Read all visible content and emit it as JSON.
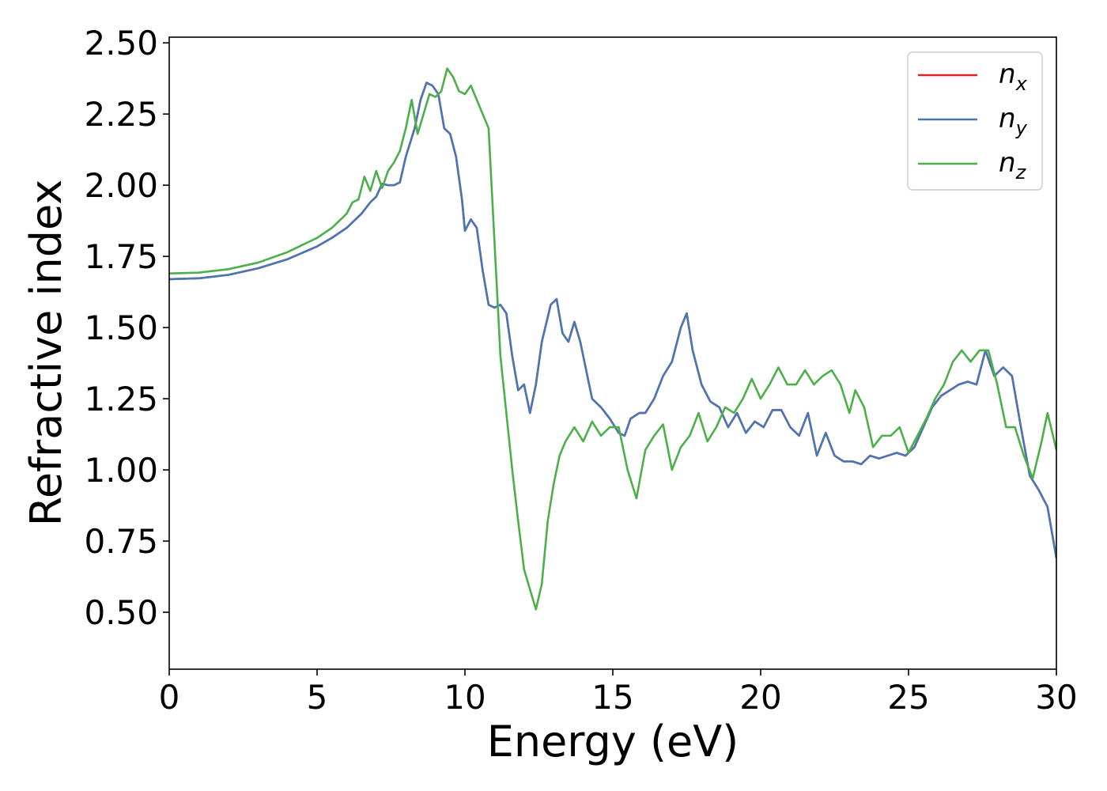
{
  "chart_data": {
    "type": "line",
    "title": "",
    "xlabel": "Energy (eV)",
    "ylabel": "Refractive index",
    "xlim": [
      0,
      30
    ],
    "ylim": [
      0.3,
      2.52
    ],
    "xticks": [
      0,
      5,
      10,
      15,
      20,
      25,
      30
    ],
    "xtick_labels": [
      "0",
      "5",
      "10",
      "15",
      "20",
      "25",
      "30"
    ],
    "yticks": [
      0.5,
      0.75,
      1.0,
      1.25,
      1.5,
      1.75,
      2.0,
      2.25,
      2.5
    ],
    "ytick_labels": [
      "0.50",
      "0.75",
      "1.00",
      "1.25",
      "1.50",
      "1.75",
      "2.00",
      "2.25",
      "2.50"
    ],
    "grid": false,
    "legend_position": "top-right",
    "series": [
      {
        "name": "n_x",
        "label_base": "n",
        "label_sub": "x",
        "color": "#d62728",
        "points": [
          [
            0,
            1.67
          ],
          [
            1,
            1.673
          ],
          [
            2,
            1.685
          ],
          [
            3,
            1.708
          ],
          [
            4,
            1.74
          ],
          [
            5,
            1.785
          ],
          [
            5.5,
            1.815
          ],
          [
            6,
            1.85
          ],
          [
            6.5,
            1.9
          ],
          [
            6.8,
            1.94
          ],
          [
            7,
            1.96
          ],
          [
            7.2,
            2.005
          ],
          [
            7.4,
            2.0
          ],
          [
            7.6,
            2.0
          ],
          [
            7.8,
            2.01
          ],
          [
            8.0,
            2.1
          ],
          [
            8.3,
            2.2
          ],
          [
            8.5,
            2.3
          ],
          [
            8.7,
            2.36
          ],
          [
            8.9,
            2.35
          ],
          [
            9.1,
            2.32
          ],
          [
            9.3,
            2.2
          ],
          [
            9.5,
            2.18
          ],
          [
            9.7,
            2.1
          ],
          [
            9.9,
            1.95
          ],
          [
            10.0,
            1.84
          ],
          [
            10.2,
            1.88
          ],
          [
            10.4,
            1.85
          ],
          [
            10.6,
            1.7
          ],
          [
            10.8,
            1.58
          ],
          [
            11.0,
            1.57
          ],
          [
            11.2,
            1.58
          ],
          [
            11.4,
            1.55
          ],
          [
            11.6,
            1.4
          ],
          [
            11.8,
            1.28
          ],
          [
            12.0,
            1.3
          ],
          [
            12.2,
            1.2
          ],
          [
            12.4,
            1.3
          ],
          [
            12.6,
            1.45
          ],
          [
            12.9,
            1.58
          ],
          [
            13.1,
            1.6
          ],
          [
            13.3,
            1.48
          ],
          [
            13.5,
            1.45
          ],
          [
            13.7,
            1.52
          ],
          [
            13.9,
            1.45
          ],
          [
            14.1,
            1.35
          ],
          [
            14.3,
            1.25
          ],
          [
            14.6,
            1.22
          ],
          [
            14.9,
            1.18
          ],
          [
            15.2,
            1.13
          ],
          [
            15.4,
            1.12
          ],
          [
            15.6,
            1.18
          ],
          [
            15.9,
            1.2
          ],
          [
            16.1,
            1.2
          ],
          [
            16.4,
            1.25
          ],
          [
            16.7,
            1.33
          ],
          [
            17.0,
            1.38
          ],
          [
            17.3,
            1.5
          ],
          [
            17.5,
            1.55
          ],
          [
            17.7,
            1.42
          ],
          [
            18.0,
            1.3
          ],
          [
            18.3,
            1.24
          ],
          [
            18.6,
            1.22
          ],
          [
            18.9,
            1.15
          ],
          [
            19.2,
            1.2
          ],
          [
            19.5,
            1.13
          ],
          [
            19.8,
            1.17
          ],
          [
            20.1,
            1.15
          ],
          [
            20.4,
            1.21
          ],
          [
            20.7,
            1.21
          ],
          [
            21.0,
            1.15
          ],
          [
            21.3,
            1.12
          ],
          [
            21.6,
            1.2
          ],
          [
            21.9,
            1.05
          ],
          [
            22.2,
            1.13
          ],
          [
            22.5,
            1.05
          ],
          [
            22.8,
            1.03
          ],
          [
            23.1,
            1.03
          ],
          [
            23.4,
            1.02
          ],
          [
            23.7,
            1.05
          ],
          [
            24.0,
            1.04
          ],
          [
            24.3,
            1.05
          ],
          [
            24.6,
            1.06
          ],
          [
            24.9,
            1.05
          ],
          [
            25.2,
            1.08
          ],
          [
            25.5,
            1.15
          ],
          [
            25.8,
            1.22
          ],
          [
            26.1,
            1.26
          ],
          [
            26.4,
            1.28
          ],
          [
            26.7,
            1.3
          ],
          [
            27.0,
            1.31
          ],
          [
            27.3,
            1.3
          ],
          [
            27.6,
            1.42
          ],
          [
            27.9,
            1.33
          ],
          [
            28.2,
            1.36
          ],
          [
            28.5,
            1.33
          ],
          [
            28.8,
            1.15
          ],
          [
            29.1,
            0.98
          ],
          [
            29.4,
            0.93
          ],
          [
            29.7,
            0.87
          ],
          [
            30.0,
            0.69
          ]
        ]
      },
      {
        "name": "n_y",
        "label_base": "n",
        "label_sub": "y",
        "color": "#4a77b4",
        "points": [
          [
            0,
            1.67
          ],
          [
            1,
            1.673
          ],
          [
            2,
            1.685
          ],
          [
            3,
            1.708
          ],
          [
            4,
            1.74
          ],
          [
            5,
            1.785
          ],
          [
            5.5,
            1.815
          ],
          [
            6,
            1.85
          ],
          [
            6.5,
            1.9
          ],
          [
            6.8,
            1.94
          ],
          [
            7,
            1.96
          ],
          [
            7.2,
            2.005
          ],
          [
            7.4,
            2.0
          ],
          [
            7.6,
            2.0
          ],
          [
            7.8,
            2.01
          ],
          [
            8.0,
            2.1
          ],
          [
            8.3,
            2.2
          ],
          [
            8.5,
            2.3
          ],
          [
            8.7,
            2.36
          ],
          [
            8.9,
            2.35
          ],
          [
            9.1,
            2.32
          ],
          [
            9.3,
            2.2
          ],
          [
            9.5,
            2.18
          ],
          [
            9.7,
            2.1
          ],
          [
            9.9,
            1.95
          ],
          [
            10.0,
            1.84
          ],
          [
            10.2,
            1.88
          ],
          [
            10.4,
            1.85
          ],
          [
            10.6,
            1.7
          ],
          [
            10.8,
            1.58
          ],
          [
            11.0,
            1.57
          ],
          [
            11.2,
            1.58
          ],
          [
            11.4,
            1.55
          ],
          [
            11.6,
            1.4
          ],
          [
            11.8,
            1.28
          ],
          [
            12.0,
            1.3
          ],
          [
            12.2,
            1.2
          ],
          [
            12.4,
            1.3
          ],
          [
            12.6,
            1.45
          ],
          [
            12.9,
            1.58
          ],
          [
            13.1,
            1.6
          ],
          [
            13.3,
            1.48
          ],
          [
            13.5,
            1.45
          ],
          [
            13.7,
            1.52
          ],
          [
            13.9,
            1.45
          ],
          [
            14.1,
            1.35
          ],
          [
            14.3,
            1.25
          ],
          [
            14.6,
            1.22
          ],
          [
            14.9,
            1.18
          ],
          [
            15.2,
            1.13
          ],
          [
            15.4,
            1.12
          ],
          [
            15.6,
            1.18
          ],
          [
            15.9,
            1.2
          ],
          [
            16.1,
            1.2
          ],
          [
            16.4,
            1.25
          ],
          [
            16.7,
            1.33
          ],
          [
            17.0,
            1.38
          ],
          [
            17.3,
            1.5
          ],
          [
            17.5,
            1.55
          ],
          [
            17.7,
            1.42
          ],
          [
            18.0,
            1.3
          ],
          [
            18.3,
            1.24
          ],
          [
            18.6,
            1.22
          ],
          [
            18.9,
            1.15
          ],
          [
            19.2,
            1.2
          ],
          [
            19.5,
            1.13
          ],
          [
            19.8,
            1.17
          ],
          [
            20.1,
            1.15
          ],
          [
            20.4,
            1.21
          ],
          [
            20.7,
            1.21
          ],
          [
            21.0,
            1.15
          ],
          [
            21.3,
            1.12
          ],
          [
            21.6,
            1.2
          ],
          [
            21.9,
            1.05
          ],
          [
            22.2,
            1.13
          ],
          [
            22.5,
            1.05
          ],
          [
            22.8,
            1.03
          ],
          [
            23.1,
            1.03
          ],
          [
            23.4,
            1.02
          ],
          [
            23.7,
            1.05
          ],
          [
            24.0,
            1.04
          ],
          [
            24.3,
            1.05
          ],
          [
            24.6,
            1.06
          ],
          [
            24.9,
            1.05
          ],
          [
            25.2,
            1.08
          ],
          [
            25.5,
            1.15
          ],
          [
            25.8,
            1.22
          ],
          [
            26.1,
            1.26
          ],
          [
            26.4,
            1.28
          ],
          [
            26.7,
            1.3
          ],
          [
            27.0,
            1.31
          ],
          [
            27.3,
            1.3
          ],
          [
            27.6,
            1.42
          ],
          [
            27.9,
            1.33
          ],
          [
            28.2,
            1.36
          ],
          [
            28.5,
            1.33
          ],
          [
            28.8,
            1.15
          ],
          [
            29.1,
            0.98
          ],
          [
            29.4,
            0.93
          ],
          [
            29.7,
            0.87
          ],
          [
            30.0,
            0.69
          ]
        ]
      },
      {
        "name": "n_z",
        "label_base": "n",
        "label_sub": "z",
        "color": "#4daf4a",
        "points": [
          [
            0,
            1.69
          ],
          [
            1,
            1.693
          ],
          [
            2,
            1.705
          ],
          [
            3,
            1.728
          ],
          [
            4,
            1.765
          ],
          [
            5,
            1.815
          ],
          [
            5.5,
            1.85
          ],
          [
            6,
            1.9
          ],
          [
            6.2,
            1.94
          ],
          [
            6.4,
            1.95
          ],
          [
            6.6,
            2.03
          ],
          [
            6.8,
            1.98
          ],
          [
            7.0,
            2.05
          ],
          [
            7.2,
            1.99
          ],
          [
            7.4,
            2.05
          ],
          [
            7.6,
            2.08
          ],
          [
            7.8,
            2.12
          ],
          [
            8.0,
            2.2
          ],
          [
            8.2,
            2.3
          ],
          [
            8.4,
            2.18
          ],
          [
            8.6,
            2.25
          ],
          [
            8.8,
            2.32
          ],
          [
            9.0,
            2.31
          ],
          [
            9.2,
            2.33
          ],
          [
            9.4,
            2.41
          ],
          [
            9.6,
            2.38
          ],
          [
            9.8,
            2.33
          ],
          [
            10.0,
            2.32
          ],
          [
            10.2,
            2.35
          ],
          [
            10.4,
            2.3
          ],
          [
            10.6,
            2.25
          ],
          [
            10.8,
            2.2
          ],
          [
            11.0,
            1.8
          ],
          [
            11.2,
            1.4
          ],
          [
            11.4,
            1.2
          ],
          [
            11.6,
            1.0
          ],
          [
            11.8,
            0.82
          ],
          [
            12.0,
            0.65
          ],
          [
            12.2,
            0.58
          ],
          [
            12.4,
            0.51
          ],
          [
            12.6,
            0.6
          ],
          [
            12.8,
            0.82
          ],
          [
            13.0,
            0.95
          ],
          [
            13.2,
            1.05
          ],
          [
            13.4,
            1.1
          ],
          [
            13.7,
            1.15
          ],
          [
            14.0,
            1.1
          ],
          [
            14.3,
            1.17
          ],
          [
            14.6,
            1.12
          ],
          [
            14.9,
            1.15
          ],
          [
            15.2,
            1.15
          ],
          [
            15.5,
            1.0
          ],
          [
            15.8,
            0.9
          ],
          [
            16.1,
            1.07
          ],
          [
            16.4,
            1.12
          ],
          [
            16.7,
            1.16
          ],
          [
            17.0,
            1.0
          ],
          [
            17.3,
            1.08
          ],
          [
            17.6,
            1.12
          ],
          [
            17.9,
            1.2
          ],
          [
            18.2,
            1.1
          ],
          [
            18.5,
            1.15
          ],
          [
            18.8,
            1.22
          ],
          [
            19.1,
            1.2
          ],
          [
            19.4,
            1.25
          ],
          [
            19.7,
            1.32
          ],
          [
            20.0,
            1.25
          ],
          [
            20.3,
            1.3
          ],
          [
            20.6,
            1.36
          ],
          [
            20.9,
            1.3
          ],
          [
            21.2,
            1.3
          ],
          [
            21.5,
            1.35
          ],
          [
            21.8,
            1.3
          ],
          [
            22.1,
            1.33
          ],
          [
            22.4,
            1.35
          ],
          [
            22.7,
            1.3
          ],
          [
            23.0,
            1.2
          ],
          [
            23.2,
            1.28
          ],
          [
            23.5,
            1.22
          ],
          [
            23.8,
            1.08
          ],
          [
            24.1,
            1.12
          ],
          [
            24.4,
            1.12
          ],
          [
            24.7,
            1.15
          ],
          [
            25.0,
            1.06
          ],
          [
            25.3,
            1.12
          ],
          [
            25.6,
            1.18
          ],
          [
            25.9,
            1.25
          ],
          [
            26.2,
            1.3
          ],
          [
            26.5,
            1.38
          ],
          [
            26.8,
            1.42
          ],
          [
            27.1,
            1.38
          ],
          [
            27.4,
            1.42
          ],
          [
            27.7,
            1.42
          ],
          [
            28.0,
            1.3
          ],
          [
            28.3,
            1.15
          ],
          [
            28.6,
            1.15
          ],
          [
            28.9,
            1.05
          ],
          [
            29.2,
            0.97
          ],
          [
            29.5,
            1.1
          ],
          [
            29.7,
            1.2
          ],
          [
            30.0,
            1.07
          ]
        ]
      }
    ]
  }
}
